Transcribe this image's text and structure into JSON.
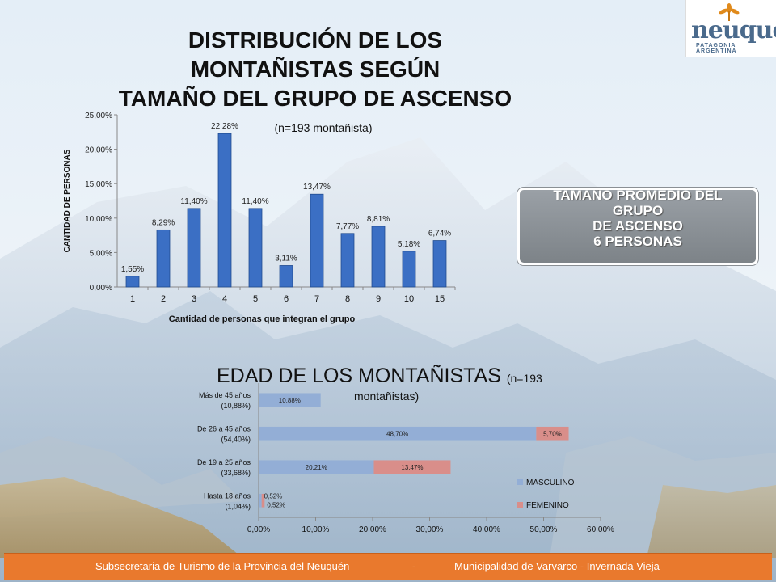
{
  "slide": {
    "title1": "DISTRIBUCIÓN DE LOS MONTAÑISTAS SEGÚN TAMAÑO DEL GRUPO DE ASCENSO",
    "title1_lines": [
      "DISTRIBUCIÓN DE LOS",
      "MONTAÑISTAS SEGÚN",
      "TAMAÑO DEL GRUPO DE ASCENSO"
    ],
    "subtitle1": "(n=193 montañista)",
    "title2_main": "EDAD DE LOS MONTAÑISTAS",
    "title2_n": "(n=193",
    "title2_sub": "montañistas)",
    "callout_lines": [
      "TAMAÑO PROMEDIO DEL",
      "GRUPO",
      "DE ASCENSO",
      "6 PERSONAS"
    ],
    "footer_left": "Subsecretaria de Turismo de la Provincia del Neuquén",
    "footer_sep": "-",
    "footer_right": "Municipalidad de Varvarco - Invernada Vieja",
    "logo_word": "neuquén",
    "logo_tag": "PATAGONIA ARGENTINA"
  },
  "colors": {
    "bar_blue": "#3b6fc4",
    "masculino": "#93aed6",
    "femenino": "#d98e8a",
    "footer": "#e9792d"
  },
  "icons": {
    "logo": "sun-flower-logo-icon"
  },
  "chart_data": [
    {
      "type": "bar",
      "categories": [
        "1",
        "2",
        "3",
        "4",
        "5",
        "6",
        "7",
        "8",
        "9",
        "10",
        "15"
      ],
      "values": [
        1.55,
        8.29,
        11.4,
        22.28,
        11.4,
        3.11,
        13.47,
        7.77,
        8.81,
        5.18,
        6.74
      ],
      "value_labels": [
        "1,55%",
        "8,29%",
        "11,40%",
        "22,28%",
        "11,40%",
        "3,11%",
        "13,47%",
        "7,77%",
        "8,81%",
        "5,18%",
        "6,74%"
      ],
      "ylim": [
        0,
        25
      ],
      "yticks": [
        "0,00%",
        "5,00%",
        "10,00%",
        "15,00%",
        "20,00%",
        "25,00%"
      ],
      "ylabel": "CANTIDAD DE PERSONAS",
      "xlabel": "Cantidad de personas que integran el grupo",
      "grid": false
    },
    {
      "type": "bar",
      "orientation": "horizontal",
      "stacked": true,
      "categories": [
        "Hasta 18 años (1,04%)",
        "De 19 a 25 años (33,68%)",
        "De 26 a 45 años (54,40%)",
        "Más de 45 años (10,88%)"
      ],
      "category_lines": [
        [
          "Hasta 18 años",
          "(1,04%)"
        ],
        [
          "De 19 a 25 años",
          "(33,68%)"
        ],
        [
          "De 26 a 45 años",
          "(54,40%)"
        ],
        [
          "Más de 45 años",
          "(10,88%)"
        ]
      ],
      "series": [
        {
          "name": "MASCULINO",
          "values": [
            0.52,
            20.21,
            48.7,
            10.88
          ],
          "labels": [
            "0,52%",
            "20,21%",
            "48,70%",
            "10,88%"
          ]
        },
        {
          "name": "FEMENINO",
          "values": [
            0.52,
            13.47,
            5.7,
            0
          ],
          "labels": [
            "0,52%",
            "13,47%",
            "5,70%",
            ""
          ]
        }
      ],
      "xlim": [
        0,
        60
      ],
      "xticks": [
        "0,00%",
        "10,00%",
        "20,00%",
        "30,00%",
        "40,00%",
        "50,00%",
        "60,00%"
      ],
      "legend": "right"
    }
  ]
}
